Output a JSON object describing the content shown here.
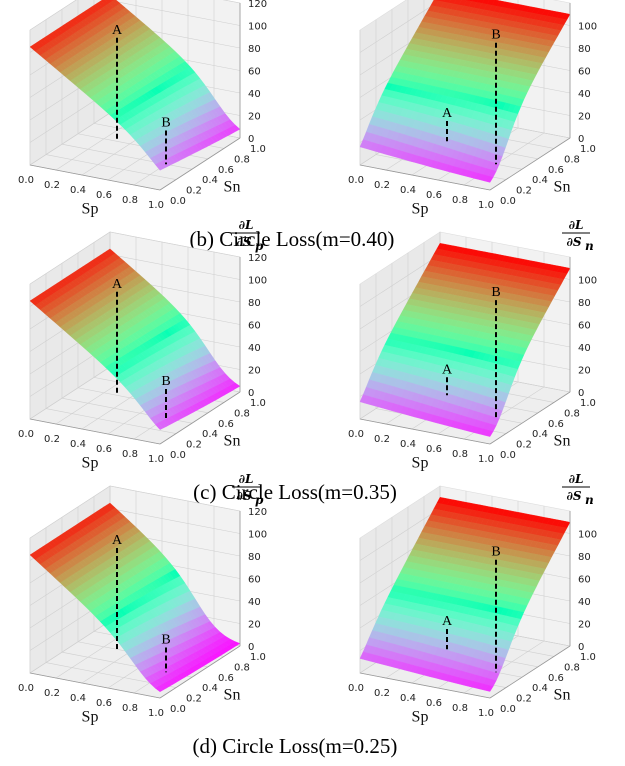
{
  "chart_data": [
    {
      "type": "surface",
      "caption": "(b) Circle Loss(m=0.40)",
      "margin": 0.4,
      "xlabel": "Sp",
      "ylabel": "Sn",
      "zlabel": "∂L/∂S_p",
      "zlabel_num": "∂L",
      "zlabel_den": "∂S",
      "zlabel_sub": "p",
      "x_ticks": [
        "0.0",
        "0.2",
        "0.4",
        "0.6",
        "0.8",
        "1.0"
      ],
      "y_ticks": [
        "0.0",
        "0.2",
        "0.4",
        "0.6",
        "0.8",
        "1.0"
      ],
      "z_ticks": [
        "0",
        "20",
        "40",
        "60",
        "80",
        "100",
        "120"
      ],
      "zlim": [
        0,
        120
      ],
      "colormap": "rainbow",
      "points": [
        {
          "label": "A",
          "x": 0.3,
          "y": 0.6,
          "z": 92
        },
        {
          "label": "B",
          "x": 0.8,
          "y": 0.4,
          "z": 30
        }
      ]
    },
    {
      "type": "surface",
      "caption": "",
      "margin": 0.4,
      "xlabel": "Sp",
      "ylabel": "Sn",
      "zlabel": "∂L/∂S_n",
      "zlabel_num": "∂L",
      "zlabel_den": "∂S",
      "zlabel_sub": "n",
      "x_ticks": [
        "0.0",
        "0.2",
        "0.4",
        "0.6",
        "0.8",
        "1.0"
      ],
      "y_ticks": [
        "0.0",
        "0.2",
        "0.4",
        "0.6",
        "0.8",
        "1.0"
      ],
      "z_ticks": [
        "0",
        "20",
        "40",
        "60",
        "80",
        "100"
      ],
      "zlim": [
        0,
        120
      ],
      "colormap": "rainbow",
      "points": [
        {
          "label": "A",
          "x": 0.3,
          "y": 0.6,
          "z": 18
        },
        {
          "label": "B",
          "x": 0.8,
          "y": 0.4,
          "z": 108
        }
      ]
    },
    {
      "type": "surface",
      "caption": "(c) Circle Loss(m=0.35)",
      "margin": 0.35,
      "xlabel": "Sp",
      "ylabel": "Sn",
      "zlabel": "∂L/∂S_p",
      "zlabel_num": "∂L",
      "zlabel_den": "∂S",
      "zlabel_sub": "p",
      "x_ticks": [
        "0.0",
        "0.2",
        "0.4",
        "0.6",
        "0.8",
        "1.0"
      ],
      "y_ticks": [
        "0.0",
        "0.2",
        "0.4",
        "0.6",
        "0.8",
        "1.0"
      ],
      "z_ticks": [
        "0",
        "20",
        "40",
        "60",
        "80",
        "100",
        "120"
      ],
      "zlim": [
        0,
        120
      ],
      "colormap": "rainbow",
      "points": [
        {
          "label": "A",
          "x": 0.3,
          "y": 0.6,
          "z": 92
        },
        {
          "label": "B",
          "x": 0.8,
          "y": 0.4,
          "z": 26
        }
      ]
    },
    {
      "type": "surface",
      "caption": "",
      "margin": 0.35,
      "xlabel": "Sp",
      "ylabel": "Sn",
      "zlabel": "∂L/∂S_n",
      "zlabel_num": "∂L",
      "zlabel_den": "∂S",
      "zlabel_sub": "n",
      "x_ticks": [
        "0.0",
        "0.2",
        "0.4",
        "0.6",
        "0.8",
        "1.0"
      ],
      "y_ticks": [
        "0.0",
        "0.2",
        "0.4",
        "0.6",
        "0.8",
        "1.0"
      ],
      "z_ticks": [
        "0",
        "20",
        "40",
        "60",
        "80",
        "100"
      ],
      "zlim": [
        0,
        120
      ],
      "colormap": "rainbow",
      "points": [
        {
          "label": "A",
          "x": 0.3,
          "y": 0.6,
          "z": 16
        },
        {
          "label": "B",
          "x": 0.8,
          "y": 0.4,
          "z": 105
        }
      ]
    },
    {
      "type": "surface",
      "caption": "(d) Circle Loss(m=0.25)",
      "margin": 0.25,
      "xlabel": "Sp",
      "ylabel": "Sn",
      "zlabel": "∂L/∂S_p",
      "zlabel_num": "∂L",
      "zlabel_den": "∂S",
      "zlabel_sub": "p",
      "x_ticks": [
        "0.0",
        "0.2",
        "0.4",
        "0.6",
        "0.8",
        "1.0"
      ],
      "y_ticks": [
        "0.0",
        "0.2",
        "0.4",
        "0.6",
        "0.8",
        "1.0"
      ],
      "z_ticks": [
        "0",
        "20",
        "40",
        "60",
        "80",
        "100",
        "120"
      ],
      "zlim": [
        0,
        120
      ],
      "colormap": "rainbow",
      "points": [
        {
          "label": "A",
          "x": 0.3,
          "y": 0.6,
          "z": 90
        },
        {
          "label": "B",
          "x": 0.8,
          "y": 0.4,
          "z": 22
        }
      ]
    },
    {
      "type": "surface",
      "caption": "",
      "margin": 0.25,
      "xlabel": "Sp",
      "ylabel": "Sn",
      "zlabel": "∂L/∂S_n",
      "zlabel_num": "∂L",
      "zlabel_den": "∂S",
      "zlabel_sub": "n",
      "x_ticks": [
        "0.0",
        "0.2",
        "0.4",
        "0.6",
        "0.8",
        "1.0"
      ],
      "y_ticks": [
        "0.0",
        "0.2",
        "0.4",
        "0.6",
        "0.8",
        "1.0"
      ],
      "z_ticks": [
        "0",
        "20",
        "40",
        "60",
        "80",
        "100"
      ],
      "zlim": [
        0,
        120
      ],
      "colormap": "rainbow",
      "points": [
        {
          "label": "A",
          "x": 0.3,
          "y": 0.6,
          "z": 18
        },
        {
          "label": "B",
          "x": 0.8,
          "y": 0.4,
          "z": 100
        }
      ]
    }
  ]
}
